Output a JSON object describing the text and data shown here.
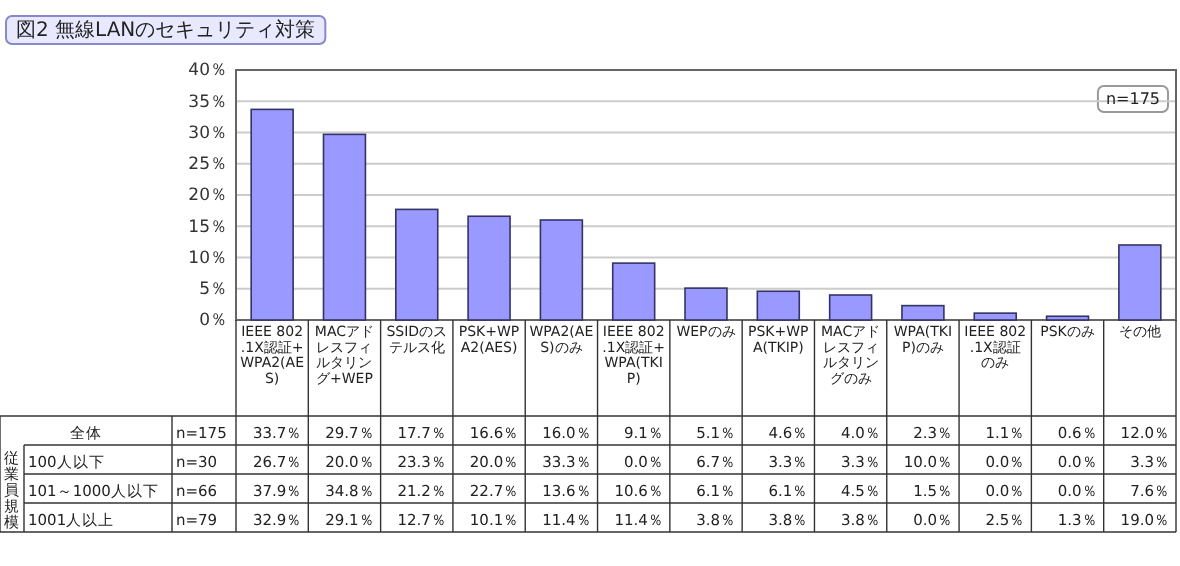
{
  "chart_data": [
    {
      "type": "bar",
      "title": "図2 無線LANのセキュリティ対策",
      "categories": [
        "IEEE 802.1X認証+WPA2(AES)",
        "MACアドレスフィルタリング+WEP",
        "SSIDのステルス化",
        "PSK+WPA2(AES)",
        "WPA2(AES)のみ",
        "IEEE 802.1X認証+WPA(TKIP)",
        "WEPのみ",
        "PSK+WPA(TKIP)",
        "MACアドレスフィルタリングのみ",
        "WPA(TKIP)のみ",
        "IEEE 802.1X認証のみ",
        "PSKのみ",
        "その他"
      ],
      "values": [
        33.7,
        29.7,
        17.7,
        16.6,
        16.0,
        9.1,
        5.1,
        4.6,
        4.0,
        2.3,
        1.1,
        0.6,
        12.0
      ],
      "color": "#9999ff",
      "ylim": [
        0,
        40
      ],
      "yticks": [
        {
          "value": 0,
          "label": "0％"
        },
        {
          "value": 5,
          "label": "5％"
        },
        {
          "value": 10,
          "label": "10％"
        },
        {
          "value": 15,
          "label": "15％"
        },
        {
          "value": 20,
          "label": "20％"
        },
        {
          "value": 25,
          "label": "25％"
        },
        {
          "value": 30,
          "label": "30％"
        },
        {
          "value": 35,
          "label": "35％"
        },
        {
          "value": 40,
          "label": "40％"
        }
      ],
      "grid": "y",
      "annotations": [
        "n=175"
      ]
    },
    {
      "type": "other",
      "ylabel": "従業員規模",
      "y_categories": [
        "全体",
        "100人以下",
        "101～1000人以下",
        "1001人以上"
      ],
      "y2_categories": [
        "n=175",
        "n=30",
        "n=66",
        "n=79"
      ],
      "cell_labels": [
        [
          "33.7％",
          "29.7％",
          "17.7％",
          "16.6％",
          "16.0％",
          "9.1％",
          "5.1％",
          "4.6％",
          "4.0％",
          "2.3％",
          "1.1％",
          "0.6％",
          "12.0％"
        ],
        [
          "26.7％",
          "20.0％",
          "23.3％",
          "20.0％",
          "33.3％",
          "0.0％",
          "6.7％",
          "3.3％",
          "3.3％",
          "10.0％",
          "0.0％",
          "0.0％",
          "3.3％"
        ],
        [
          "37.9％",
          "34.8％",
          "21.2％",
          "22.7％",
          "13.6％",
          "10.6％",
          "6.1％",
          "6.1％",
          "4.5％",
          "1.5％",
          "0.0％",
          "0.0％",
          "7.6％"
        ],
        [
          "32.9％",
          "29.1％",
          "12.7％",
          "10.1％",
          "11.4％",
          "11.4％",
          "3.8％",
          "3.8％",
          "3.8％",
          "0.0％",
          "2.5％",
          "1.3％",
          "19.0％"
        ]
      ]
    }
  ]
}
